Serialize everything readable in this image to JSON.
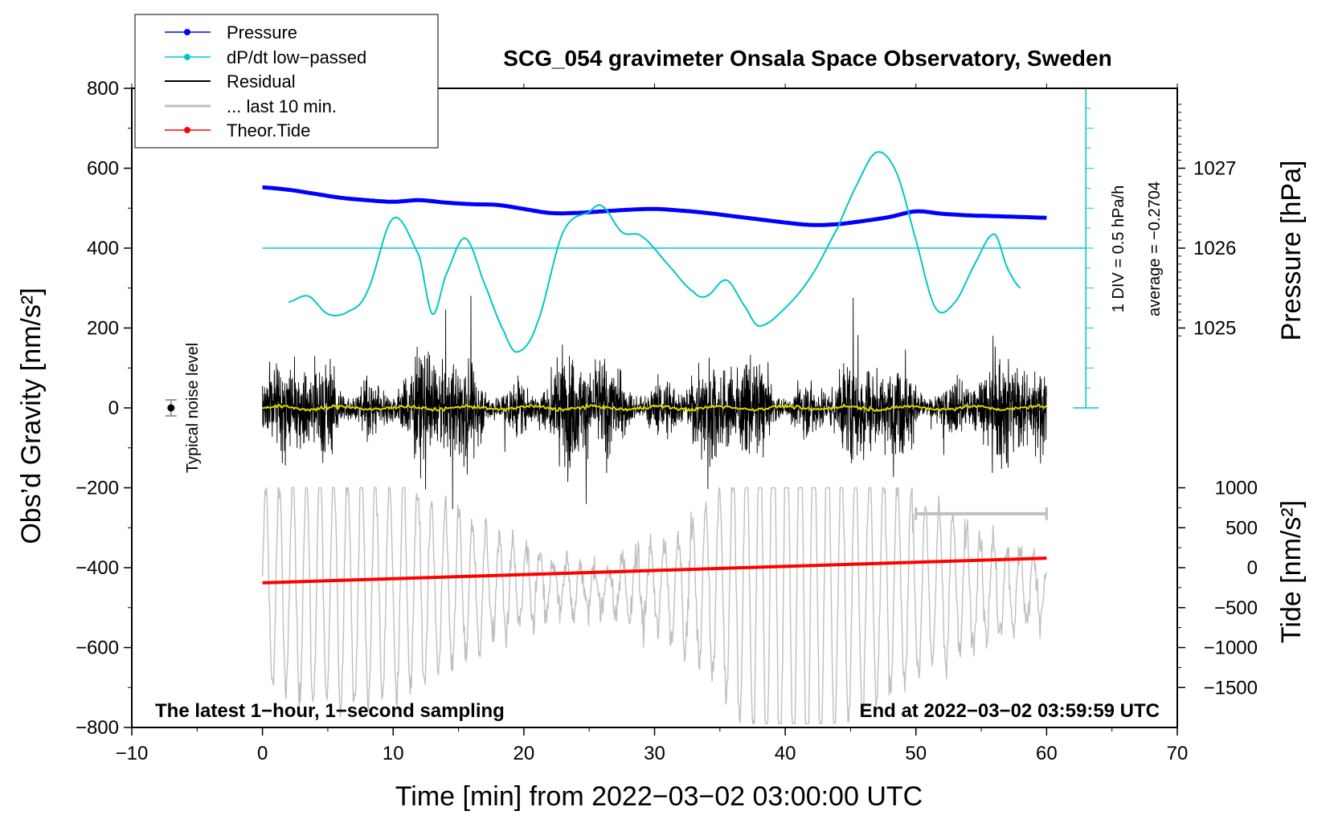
{
  "chart_data": {
    "type": "line",
    "title": "SCG_054 gravimeter Onsala Space Observatory, Sweden",
    "xlabel": "Time [min] from 2022−03−02 03:00:00 UTC",
    "ylabel_left": "Obs’d Gravity [nm/s²]",
    "ylabel_right_top": "Pressure [hPa]",
    "ylabel_right_bottom": "Tide [nm/s²]",
    "xlim": [
      -10,
      70
    ],
    "ylim": [
      -800,
      800
    ],
    "x_ticks": [
      "−10",
      "0",
      "10",
      "20",
      "30",
      "40",
      "50",
      "60",
      "70"
    ],
    "x_tick_values": [
      -10,
      0,
      10,
      20,
      30,
      40,
      50,
      60,
      70
    ],
    "y_ticks": [
      "800",
      "600",
      "400",
      "200",
      "0",
      "−200",
      "−400",
      "−600",
      "−800"
    ],
    "y_tick_values": [
      800,
      600,
      400,
      200,
      0,
      -200,
      -400,
      -600,
      -800
    ],
    "pressure_axis": {
      "ticks": [
        "1027",
        "1026",
        "1025"
      ],
      "tick_values": [
        1027,
        1026,
        1025
      ],
      "ref_hpa": 1026,
      "ref_gravity": 400,
      "gravity_per_hpa": 200
    },
    "tide_axis": {
      "ticks": [
        "1000",
        "500",
        "0",
        "−500",
        "−1000",
        "−1500"
      ],
      "tick_values": [
        1000,
        500,
        0,
        -500,
        -1000,
        -1500
      ],
      "scale_gravity_per_unit": 0.2,
      "offset_gravity": -400
    },
    "series": [
      {
        "name": "Pressure",
        "color": "#0000ff",
        "unit": "hPa",
        "x": [
          0,
          2,
          4,
          6,
          8,
          10,
          12,
          14,
          16,
          18,
          20,
          22,
          24,
          26,
          28,
          30,
          32,
          34,
          36,
          38,
          40,
          42,
          44,
          46,
          48,
          50,
          52,
          54,
          56,
          58,
          60
        ],
        "values": [
          1026.76,
          1026.73,
          1026.68,
          1026.63,
          1026.6,
          1026.58,
          1026.6,
          1026.57,
          1026.55,
          1026.54,
          1026.49,
          1026.44,
          1026.44,
          1026.46,
          1026.48,
          1026.49,
          1026.47,
          1026.44,
          1026.4,
          1026.36,
          1026.32,
          1026.29,
          1026.3,
          1026.34,
          1026.39,
          1026.46,
          1026.43,
          1026.41,
          1026.4,
          1026.39,
          1026.38
        ]
      },
      {
        "name": "dP/dt low−passed",
        "color": "#00c8c8",
        "unit": "nm/s² equivalent",
        "x": [
          2,
          3.5,
          5,
          6.5,
          8,
          10,
          12,
          13,
          14,
          15.5,
          17,
          18.5,
          19.5,
          21,
          23,
          25,
          26,
          27.5,
          29,
          31,
          33,
          34,
          35.5,
          37,
          38,
          40,
          42,
          44,
          45.5,
          47,
          48.5,
          50,
          51.5,
          53,
          54.5,
          56,
          57,
          58
        ],
        "values": [
          265,
          280,
          235,
          240,
          290,
          475,
          380,
          235,
          330,
          425,
          310,
          190,
          140,
          210,
          440,
          490,
          505,
          440,
          430,
          360,
          290,
          280,
          320,
          250,
          205,
          250,
          330,
          450,
          560,
          640,
          590,
          420,
          250,
          265,
          360,
          435,
          350,
          300
        ]
      },
      {
        "name": "Residual",
        "color": "#000000",
        "x_range": [
          0,
          60
        ],
        "amplitude_nm_s2": [
          -300,
          330
        ]
      },
      {
        "name": "... last 10 min.",
        "color": "#bfbfbf",
        "x_range": [
          50,
          60
        ]
      },
      {
        "name": "Theor.Tide",
        "color": "#ff0000",
        "x": [
          0,
          60
        ],
        "values": [
          -190,
          120
        ],
        "unit": "nm/s²"
      }
    ],
    "legend": {
      "placement": "top-left",
      "entries": [
        "Pressure",
        "dP/dt low−passed",
        "Residual",
        "... last 10 min.",
        "Theor.Tide"
      ]
    },
    "annotations": {
      "noise_level": "Typical noise level",
      "div_label": "1 DIV = 0.5 hPa/h",
      "average_label": "average = −0.2704",
      "latest_note": "The latest 1−hour, 1−second sampling",
      "end_note": "End at 2022−03−02 03:59:59 UTC"
    },
    "colors": {
      "pressure": "#0000ff",
      "dpdt": "#00c8c8",
      "residual": "#000000",
      "last10": "#bfbfbf",
      "tide": "#ff0000",
      "lowpass": "#d8d800"
    }
  }
}
